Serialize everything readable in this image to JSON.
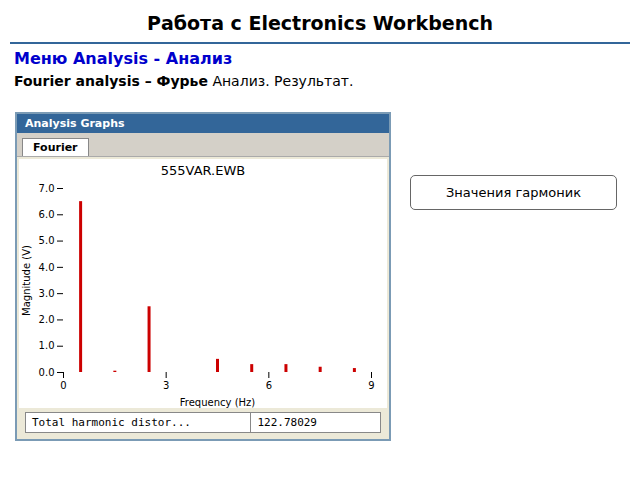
{
  "chart_data": {
    "type": "bar",
    "title": "555VAR.EWB",
    "annotations": [
      "Работа с Electronics Workbench",
      "Меню Analysis - Анализ",
      "Fourier analysis  – Фурье",
      "Анализ. Результат.",
      "Analysis Graphs",
      "Fourier",
      "Total harmonic distor...",
      "122.78029",
      "Значения гармоник"
    ],
    "x": [
      0.5,
      1.5,
      2.5,
      4.5,
      5.5,
      6.5,
      7.5,
      8.5
    ],
    "values": [
      6.5,
      0.05,
      2.5,
      0.5,
      0.3,
      0.3,
      0.2,
      0.15
    ],
    "color": "#CC0000",
    "xlabel": "Frequency (Hz)",
    "ylabel": "Magnitude (V)",
    "xlim": [
      0,
      9
    ],
    "xticks": [
      0,
      3,
      6,
      9
    ],
    "ylim": [
      0,
      7
    ],
    "yticks": [
      0,
      1,
      2,
      3,
      4,
      5,
      6,
      7
    ],
    "grid": false
  }
}
